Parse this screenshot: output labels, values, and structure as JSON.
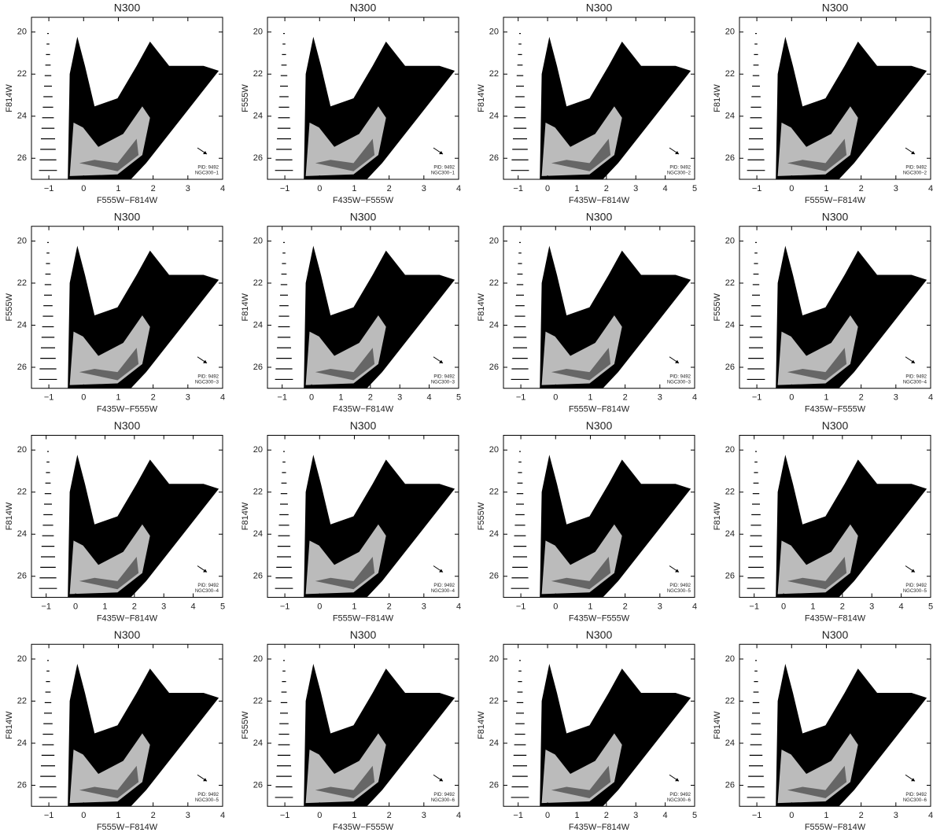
{
  "chart_data": [
    {
      "type": "scatter",
      "title": "N300",
      "xlabel": "F555W−F814W",
      "ylabel": "F814W",
      "xlim": [
        -1.5,
        4
      ],
      "ylim": [
        27,
        19.3
      ],
      "xticks": [
        {
          "value": -1,
          "label": "−1"
        },
        0,
        1,
        2,
        3,
        4
      ],
      "yticks": [
        20,
        22,
        24,
        26
      ],
      "annotations": [
        "PID: 9492",
        "NGC300−1"
      ]
    },
    {
      "type": "scatter",
      "title": "N300",
      "xlabel": "F435W−F555W",
      "ylabel": "F555W",
      "xlim": [
        -1.5,
        4
      ],
      "ylim": [
        27,
        19.3
      ],
      "xticks": [
        {
          "value": -1,
          "label": "−1"
        },
        0,
        1,
        2,
        3,
        4
      ],
      "yticks": [
        20,
        22,
        24,
        26
      ],
      "annotations": [
        "PID: 9492",
        "NGC300−1"
      ]
    },
    {
      "type": "scatter",
      "title": "N300",
      "xlabel": "F435W−F814W",
      "ylabel": "F814W",
      "xlim": [
        -1.5,
        5
      ],
      "ylim": [
        27,
        19.3
      ],
      "xticks": [
        {
          "value": -1,
          "label": "−1"
        },
        0,
        1,
        2,
        3,
        4,
        5
      ],
      "yticks": [
        20,
        22,
        24,
        26
      ],
      "annotations": [
        "PID: 9492",
        "NGC300−2"
      ]
    },
    {
      "type": "scatter",
      "title": "N300",
      "xlabel": "F555W−F814W",
      "ylabel": "F814W",
      "xlim": [
        -1.5,
        4
      ],
      "ylim": [
        27,
        19.3
      ],
      "xticks": [
        {
          "value": -1,
          "label": "−1"
        },
        0,
        1,
        2,
        3,
        4
      ],
      "yticks": [
        20,
        22,
        24,
        26
      ],
      "annotations": [
        "PID: 9492",
        "NGC300−2"
      ]
    },
    {
      "type": "scatter",
      "title": "N300",
      "xlabel": "F435W−F555W",
      "ylabel": "F555W",
      "xlim": [
        -1.5,
        4
      ],
      "ylim": [
        27,
        19.3
      ],
      "xticks": [
        {
          "value": -1,
          "label": "−1"
        },
        0,
        1,
        2,
        3,
        4
      ],
      "yticks": [
        20,
        22,
        24,
        26
      ],
      "annotations": [
        "PID: 9492",
        "NGC300−3"
      ]
    },
    {
      "type": "scatter",
      "title": "N300",
      "xlabel": "F435W−F814W",
      "ylabel": "F814W",
      "xlim": [
        -1.5,
        5
      ],
      "ylim": [
        27,
        19.3
      ],
      "xticks": [
        {
          "value": -1,
          "label": "−1"
        },
        0,
        1,
        2,
        3,
        4,
        5
      ],
      "yticks": [
        20,
        22,
        24,
        26
      ],
      "annotations": [
        "PID: 9492",
        "NGC300−3"
      ]
    },
    {
      "type": "scatter",
      "title": "N300",
      "xlabel": "F555W−F814W",
      "ylabel": "F814W",
      "xlim": [
        -1.5,
        4
      ],
      "ylim": [
        27,
        19.3
      ],
      "xticks": [
        {
          "value": -1,
          "label": "−1"
        },
        0,
        1,
        2,
        3,
        4
      ],
      "yticks": [
        20,
        22,
        24,
        26
      ],
      "annotations": [
        "PID: 9492",
        "NGC300−3"
      ]
    },
    {
      "type": "scatter",
      "title": "N300",
      "xlabel": "F435W−F555W",
      "ylabel": "F555W",
      "xlim": [
        -1.5,
        4
      ],
      "ylim": [
        27,
        19.3
      ],
      "xticks": [
        {
          "value": -1,
          "label": "−1"
        },
        0,
        1,
        2,
        3,
        4
      ],
      "yticks": [
        20,
        22,
        24,
        26
      ],
      "annotations": [
        "PID: 9492",
        "NGC300−4"
      ]
    },
    {
      "type": "scatter",
      "title": "N300",
      "xlabel": "F435W−F814W",
      "ylabel": "F814W",
      "xlim": [
        -1.5,
        5
      ],
      "ylim": [
        27,
        19.3
      ],
      "xticks": [
        {
          "value": -1,
          "label": "−1"
        },
        0,
        1,
        2,
        3,
        4,
        5
      ],
      "yticks": [
        20,
        22,
        24,
        26
      ],
      "annotations": [
        "PID: 9492",
        "NGC300−4"
      ]
    },
    {
      "type": "scatter",
      "title": "N300",
      "xlabel": "F555W−F814W",
      "ylabel": "F814W",
      "xlim": [
        -1.5,
        4
      ],
      "ylim": [
        27,
        19.3
      ],
      "xticks": [
        {
          "value": -1,
          "label": "−1"
        },
        0,
        1,
        2,
        3,
        4
      ],
      "yticks": [
        20,
        22,
        24,
        26
      ],
      "annotations": [
        "PID: 9492",
        "NGC300−4"
      ]
    },
    {
      "type": "scatter",
      "title": "N300",
      "xlabel": "F435W−F555W",
      "ylabel": "F555W",
      "xlim": [
        -1.5,
        4
      ],
      "ylim": [
        27,
        19.3
      ],
      "xticks": [
        {
          "value": -1,
          "label": "−1"
        },
        0,
        1,
        2,
        3,
        4
      ],
      "yticks": [
        20,
        22,
        24,
        26
      ],
      "annotations": [
        "PID: 9492",
        "NGC300−5"
      ]
    },
    {
      "type": "scatter",
      "title": "N300",
      "xlabel": "F435W−F814W",
      "ylabel": "F814W",
      "xlim": [
        -1.5,
        5
      ],
      "ylim": [
        27,
        19.3
      ],
      "xticks": [
        {
          "value": -1,
          "label": "−1"
        },
        0,
        1,
        2,
        3,
        4,
        5
      ],
      "yticks": [
        20,
        22,
        24,
        26
      ],
      "annotations": [
        "PID: 9492",
        "NGC300−5"
      ]
    },
    {
      "type": "scatter",
      "title": "N300",
      "xlabel": "F555W−F814W",
      "ylabel": "F814W",
      "xlim": [
        -1.5,
        4
      ],
      "ylim": [
        27,
        19.3
      ],
      "xticks": [
        {
          "value": -1,
          "label": "−1"
        },
        0,
        1,
        2,
        3,
        4
      ],
      "yticks": [
        20,
        22,
        24,
        26
      ],
      "annotations": [
        "PID: 9492",
        "NGC300−5"
      ]
    },
    {
      "type": "scatter",
      "title": "N300",
      "xlabel": "F435W−F555W",
      "ylabel": "F555W",
      "xlim": [
        -1.5,
        4
      ],
      "ylim": [
        27,
        19.3
      ],
      "xticks": [
        {
          "value": -1,
          "label": "−1"
        },
        0,
        1,
        2,
        3,
        4
      ],
      "yticks": [
        20,
        22,
        24,
        26
      ],
      "annotations": [
        "PID: 9492",
        "NGC300−6"
      ]
    },
    {
      "type": "scatter",
      "title": "N300",
      "xlabel": "F435W−F814W",
      "ylabel": "F814W",
      "xlim": [
        -1.5,
        5
      ],
      "ylim": [
        27,
        19.3
      ],
      "xticks": [
        {
          "value": -1,
          "label": "−1"
        },
        0,
        1,
        2,
        3,
        4,
        5
      ],
      "yticks": [
        20,
        22,
        24,
        26
      ],
      "annotations": [
        "PID: 9492",
        "NGC300−6"
      ]
    },
    {
      "type": "scatter",
      "title": "N300",
      "xlabel": "F555W−F814W",
      "ylabel": "F814W",
      "xlim": [
        -1.5,
        4
      ],
      "ylim": [
        27,
        19.3
      ],
      "xticks": [
        {
          "value": -1,
          "label": "−1"
        },
        0,
        1,
        2,
        3,
        4
      ],
      "yticks": [
        20,
        22,
        24,
        26
      ],
      "annotations": [
        "PID: 9492",
        "NGC300−6"
      ]
    }
  ]
}
